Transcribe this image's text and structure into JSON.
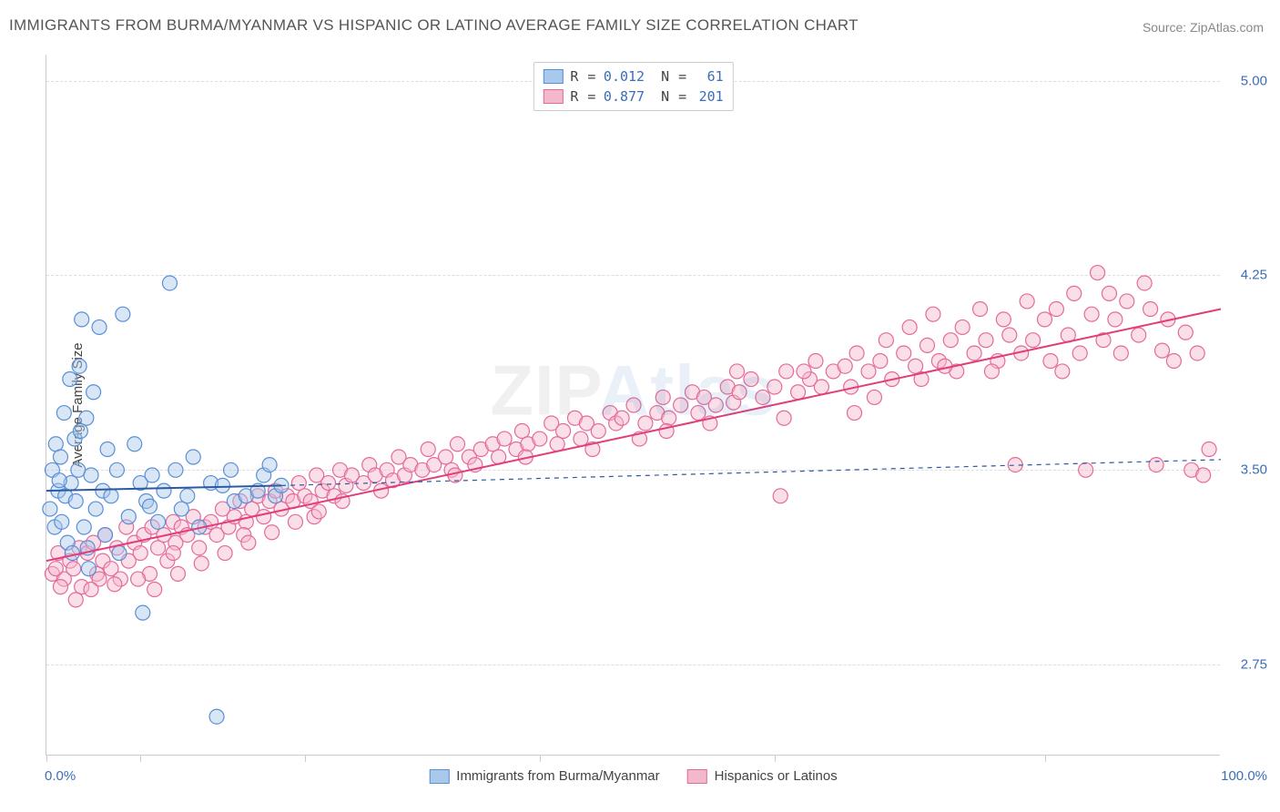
{
  "title": "IMMIGRANTS FROM BURMA/MYANMAR VS HISPANIC OR LATINO AVERAGE FAMILY SIZE CORRELATION CHART",
  "source_label": "Source:",
  "source_name": "ZipAtlas.com",
  "watermark_a": "ZIP",
  "watermark_b": "Atlas",
  "chart": {
    "type": "scatter",
    "xlim": [
      0,
      100
    ],
    "ylim": [
      2.4,
      5.1
    ],
    "x_axis_label_left": "0.0%",
    "x_axis_label_right": "100.0%",
    "y_axis_title": "Average Family Size",
    "y_ticks": [
      2.75,
      3.5,
      4.25,
      5.0
    ],
    "y_tick_labels": [
      "2.75",
      "3.50",
      "4.25",
      "5.00"
    ],
    "x_ticks": [
      0,
      8,
      22,
      42,
      62,
      85
    ],
    "grid_color": "#dddddd",
    "axis_color": "#cccccc",
    "tick_label_color": "#3b6db8",
    "background_color": "#ffffff",
    "marker_radius": 8,
    "marker_opacity": 0.45,
    "series": [
      {
        "id": "burma",
        "label": "Immigrants from Burma/Myanmar",
        "color_fill": "#a8c8ec",
        "color_stroke": "#5a8fd6",
        "R": "0.012",
        "N": "61",
        "trend": {
          "x1": 0,
          "y1": 3.42,
          "x2": 20,
          "y2": 3.44,
          "x2_dash": 100,
          "y2_dash": 3.54,
          "color": "#2c5aa0",
          "width": 2
        },
        "points": [
          [
            0.3,
            3.35
          ],
          [
            0.5,
            3.5
          ],
          [
            0.7,
            3.28
          ],
          [
            0.8,
            3.6
          ],
          [
            1.0,
            3.42
          ],
          [
            1.2,
            3.55
          ],
          [
            1.3,
            3.3
          ],
          [
            1.5,
            3.72
          ],
          [
            1.6,
            3.4
          ],
          [
            1.8,
            3.22
          ],
          [
            2.0,
            3.85
          ],
          [
            2.1,
            3.45
          ],
          [
            2.2,
            3.18
          ],
          [
            2.4,
            3.62
          ],
          [
            2.5,
            3.38
          ],
          [
            2.7,
            3.5
          ],
          [
            2.8,
            3.9
          ],
          [
            3.0,
            4.08
          ],
          [
            3.2,
            3.28
          ],
          [
            3.4,
            3.7
          ],
          [
            3.5,
            3.2
          ],
          [
            3.8,
            3.48
          ],
          [
            4.0,
            3.8
          ],
          [
            4.2,
            3.35
          ],
          [
            4.5,
            4.05
          ],
          [
            4.8,
            3.42
          ],
          [
            5.0,
            3.25
          ],
          [
            5.2,
            3.58
          ],
          [
            5.5,
            3.4
          ],
          [
            6.0,
            3.5
          ],
          [
            6.2,
            3.18
          ],
          [
            6.5,
            4.1
          ],
          [
            7.0,
            3.32
          ],
          [
            7.5,
            3.6
          ],
          [
            8.0,
            3.45
          ],
          [
            8.2,
            2.95
          ],
          [
            8.5,
            3.38
          ],
          [
            9.0,
            3.48
          ],
          [
            9.5,
            3.3
          ],
          [
            10.0,
            3.42
          ],
          [
            10.5,
            4.22
          ],
          [
            11.0,
            3.5
          ],
          [
            11.5,
            3.35
          ],
          [
            12.0,
            3.4
          ],
          [
            12.5,
            3.55
          ],
          [
            13.0,
            3.28
          ],
          [
            14.0,
            3.45
          ],
          [
            14.5,
            2.55
          ],
          [
            15.0,
            3.44
          ],
          [
            15.7,
            3.5
          ],
          [
            16.0,
            3.38
          ],
          [
            17.0,
            3.4
          ],
          [
            18.0,
            3.42
          ],
          [
            18.5,
            3.48
          ],
          [
            19.0,
            3.52
          ],
          [
            19.5,
            3.4
          ],
          [
            20.0,
            3.44
          ],
          [
            8.8,
            3.36
          ],
          [
            3.6,
            3.12
          ],
          [
            2.9,
            3.65
          ],
          [
            1.1,
            3.46
          ]
        ]
      },
      {
        "id": "hispanic",
        "label": "Hispanics or Latinos",
        "color_fill": "#f4b8cc",
        "color_stroke": "#e56a9a",
        "R": "0.877",
        "N": "201",
        "trend": {
          "x1": 0,
          "y1": 3.15,
          "x2": 100,
          "y2": 4.12,
          "color": "#e23d7a",
          "width": 2
        },
        "points": [
          [
            0.5,
            3.1
          ],
          [
            1.0,
            3.18
          ],
          [
            1.5,
            3.08
          ],
          [
            2.0,
            3.15
          ],
          [
            2.3,
            3.12
          ],
          [
            2.8,
            3.2
          ],
          [
            3.0,
            3.05
          ],
          [
            3.5,
            3.18
          ],
          [
            4.0,
            3.22
          ],
          [
            4.3,
            3.1
          ],
          [
            4.8,
            3.15
          ],
          [
            5.0,
            3.25
          ],
          [
            5.5,
            3.12
          ],
          [
            6.0,
            3.2
          ],
          [
            6.3,
            3.08
          ],
          [
            6.8,
            3.28
          ],
          [
            7.0,
            3.15
          ],
          [
            7.5,
            3.22
          ],
          [
            8.0,
            3.18
          ],
          [
            8.3,
            3.25
          ],
          [
            8.8,
            3.1
          ],
          [
            9.0,
            3.28
          ],
          [
            9.5,
            3.2
          ],
          [
            10.0,
            3.25
          ],
          [
            10.3,
            3.15
          ],
          [
            10.8,
            3.3
          ],
          [
            11.0,
            3.22
          ],
          [
            11.5,
            3.28
          ],
          [
            12.0,
            3.25
          ],
          [
            12.5,
            3.32
          ],
          [
            13.0,
            3.2
          ],
          [
            13.5,
            3.28
          ],
          [
            14.0,
            3.3
          ],
          [
            14.5,
            3.25
          ],
          [
            15.0,
            3.35
          ],
          [
            15.5,
            3.28
          ],
          [
            16.0,
            3.32
          ],
          [
            16.5,
            3.38
          ],
          [
            17.0,
            3.3
          ],
          [
            17.5,
            3.35
          ],
          [
            18.0,
            3.4
          ],
          [
            18.5,
            3.32
          ],
          [
            19.0,
            3.38
          ],
          [
            19.5,
            3.42
          ],
          [
            20.0,
            3.35
          ],
          [
            20.5,
            3.4
          ],
          [
            21.0,
            3.38
          ],
          [
            21.5,
            3.45
          ],
          [
            22.0,
            3.4
          ],
          [
            22.5,
            3.38
          ],
          [
            23.0,
            3.48
          ],
          [
            23.5,
            3.42
          ],
          [
            24.0,
            3.45
          ],
          [
            24.5,
            3.4
          ],
          [
            25.0,
            3.5
          ],
          [
            25.5,
            3.44
          ],
          [
            26.0,
            3.48
          ],
          [
            27.0,
            3.45
          ],
          [
            27.5,
            3.52
          ],
          [
            28.0,
            3.48
          ],
          [
            29.0,
            3.5
          ],
          [
            29.5,
            3.46
          ],
          [
            30.0,
            3.55
          ],
          [
            30.5,
            3.48
          ],
          [
            31.0,
            3.52
          ],
          [
            32.0,
            3.5
          ],
          [
            32.5,
            3.58
          ],
          [
            33.0,
            3.52
          ],
          [
            34.0,
            3.55
          ],
          [
            34.5,
            3.5
          ],
          [
            35.0,
            3.6
          ],
          [
            36.0,
            3.55
          ],
          [
            36.5,
            3.52
          ],
          [
            37.0,
            3.58
          ],
          [
            38.0,
            3.6
          ],
          [
            38.5,
            3.55
          ],
          [
            39.0,
            3.62
          ],
          [
            40.0,
            3.58
          ],
          [
            40.5,
            3.65
          ],
          [
            41.0,
            3.6
          ],
          [
            42.0,
            3.62
          ],
          [
            43.0,
            3.68
          ],
          [
            43.5,
            3.6
          ],
          [
            44.0,
            3.65
          ],
          [
            45.0,
            3.7
          ],
          [
            45.5,
            3.62
          ],
          [
            46.0,
            3.68
          ],
          [
            47.0,
            3.65
          ],
          [
            48.0,
            3.72
          ],
          [
            48.5,
            3.68
          ],
          [
            49.0,
            3.7
          ],
          [
            50.0,
            3.75
          ],
          [
            51.0,
            3.68
          ],
          [
            52.0,
            3.72
          ],
          [
            52.5,
            3.78
          ],
          [
            53.0,
            3.7
          ],
          [
            54.0,
            3.75
          ],
          [
            55.0,
            3.8
          ],
          [
            55.5,
            3.72
          ],
          [
            56.0,
            3.78
          ],
          [
            57.0,
            3.75
          ],
          [
            58.0,
            3.82
          ],
          [
            58.5,
            3.76
          ],
          [
            59.0,
            3.8
          ],
          [
            60.0,
            3.85
          ],
          [
            61.0,
            3.78
          ],
          [
            62.0,
            3.82
          ],
          [
            62.5,
            3.4
          ],
          [
            63.0,
            3.88
          ],
          [
            64.0,
            3.8
          ],
          [
            65.0,
            3.85
          ],
          [
            65.5,
            3.92
          ],
          [
            66.0,
            3.82
          ],
          [
            67.0,
            3.88
          ],
          [
            68.0,
            3.9
          ],
          [
            68.5,
            3.82
          ],
          [
            69.0,
            3.95
          ],
          [
            70.0,
            3.88
          ],
          [
            71.0,
            3.92
          ],
          [
            71.5,
            4.0
          ],
          [
            72.0,
            3.85
          ],
          [
            73.0,
            3.95
          ],
          [
            73.5,
            4.05
          ],
          [
            74.0,
            3.9
          ],
          [
            75.0,
            3.98
          ],
          [
            75.5,
            4.1
          ],
          [
            76.0,
            3.92
          ],
          [
            77.0,
            4.0
          ],
          [
            77.5,
            3.88
          ],
          [
            78.0,
            4.05
          ],
          [
            79.0,
            3.95
          ],
          [
            79.5,
            4.12
          ],
          [
            80.0,
            4.0
          ],
          [
            81.0,
            3.92
          ],
          [
            81.5,
            4.08
          ],
          [
            82.0,
            4.02
          ],
          [
            83.0,
            3.95
          ],
          [
            83.5,
            4.15
          ],
          [
            84.0,
            4.0
          ],
          [
            85.0,
            4.08
          ],
          [
            85.5,
            3.92
          ],
          [
            86.0,
            4.12
          ],
          [
            87.0,
            4.02
          ],
          [
            87.5,
            4.18
          ],
          [
            88.0,
            3.95
          ],
          [
            89.0,
            4.1
          ],
          [
            89.5,
            4.26
          ],
          [
            90.0,
            4.0
          ],
          [
            91.0,
            4.08
          ],
          [
            91.5,
            3.95
          ],
          [
            92.0,
            4.15
          ],
          [
            93.0,
            4.02
          ],
          [
            93.5,
            4.22
          ],
          [
            94.0,
            4.12
          ],
          [
            95.0,
            3.96
          ],
          [
            95.5,
            4.08
          ],
          [
            96.0,
            3.92
          ],
          [
            97.0,
            4.03
          ],
          [
            97.5,
            3.5
          ],
          [
            98.0,
            3.95
          ],
          [
            98.5,
            3.48
          ],
          [
            99.0,
            3.58
          ],
          [
            94.5,
            3.52
          ],
          [
            88.5,
            3.5
          ],
          [
            82.5,
            3.52
          ],
          [
            76.5,
            3.9
          ],
          [
            70.5,
            3.78
          ],
          [
            64.5,
            3.88
          ],
          [
            58.8,
            3.88
          ],
          [
            52.8,
            3.65
          ],
          [
            46.5,
            3.58
          ],
          [
            40.8,
            3.55
          ],
          [
            34.8,
            3.48
          ],
          [
            28.5,
            3.42
          ],
          [
            22.8,
            3.32
          ],
          [
            16.8,
            3.25
          ],
          [
            10.8,
            3.18
          ],
          [
            4.5,
            3.08
          ],
          [
            2.5,
            3.0
          ],
          [
            1.2,
            3.05
          ],
          [
            0.8,
            3.12
          ],
          [
            3.8,
            3.04
          ],
          [
            5.8,
            3.06
          ],
          [
            7.8,
            3.08
          ],
          [
            9.2,
            3.04
          ],
          [
            11.2,
            3.1
          ],
          [
            13.2,
            3.14
          ],
          [
            15.2,
            3.18
          ],
          [
            17.2,
            3.22
          ],
          [
            19.2,
            3.26
          ],
          [
            21.2,
            3.3
          ],
          [
            23.2,
            3.34
          ],
          [
            25.2,
            3.38
          ],
          [
            90.5,
            4.18
          ],
          [
            86.5,
            3.88
          ],
          [
            80.5,
            3.88
          ],
          [
            74.5,
            3.85
          ],
          [
            68.8,
            3.72
          ],
          [
            62.8,
            3.7
          ],
          [
            56.5,
            3.68
          ],
          [
            50.5,
            3.62
          ]
        ]
      }
    ]
  }
}
